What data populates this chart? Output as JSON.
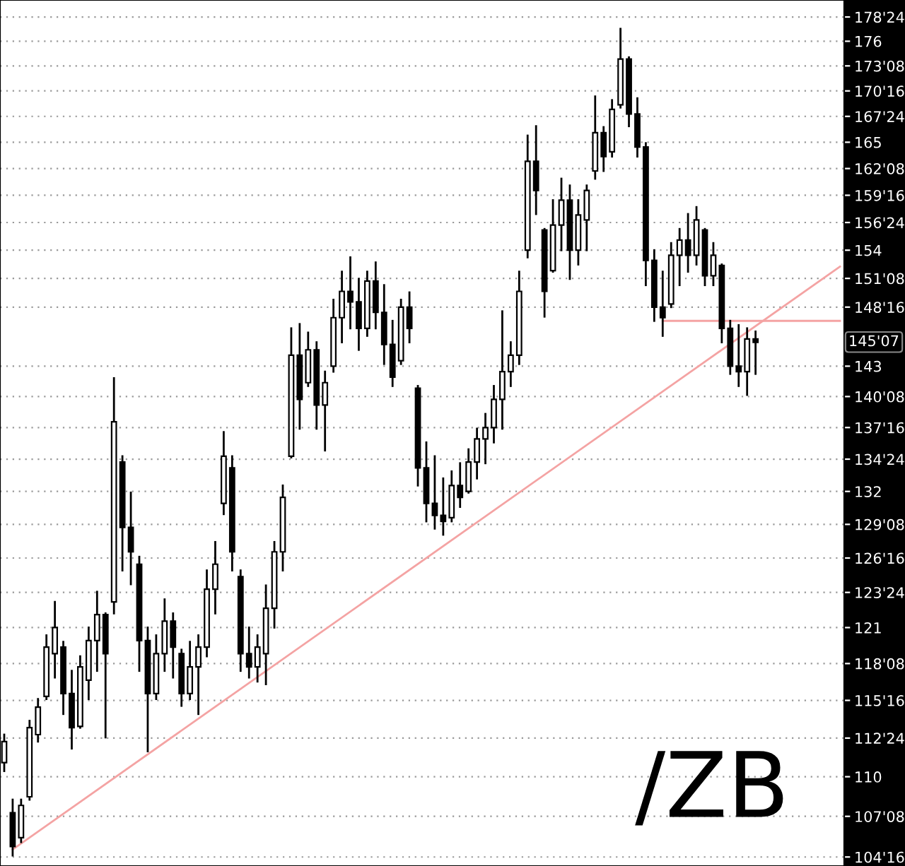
{
  "chart_data": {
    "type": "candlestick",
    "log": "y",
    "grid": "y",
    "tick_labels": "y",
    "categories": [
      null,
      null,
      null,
      null,
      null,
      null,
      null,
      null,
      null,
      null,
      null,
      null,
      null,
      null,
      null,
      null,
      null,
      null,
      null,
      null,
      null,
      null,
      null,
      null,
      null,
      null,
      null,
      null,
      null,
      null,
      null,
      null,
      null,
      null,
      null,
      null,
      null,
      null,
      null,
      null,
      null,
      null,
      null,
      null,
      null,
      null,
      null,
      null,
      null,
      null,
      null,
      null,
      null,
      null,
      null,
      null,
      null,
      null,
      null,
      null,
      null,
      null,
      null,
      null,
      null,
      null,
      null,
      null,
      null,
      null,
      null,
      null,
      null,
      null,
      null,
      null,
      null,
      null,
      null,
      null,
      null,
      null,
      null,
      null,
      null,
      null,
      null,
      null,
      null,
      null,
      null,
      null,
      null,
      null,
      null,
      null,
      null,
      null,
      null,
      null
    ],
    "color": "#000000",
    "ohlc": [
      [
        111,
        113.0,
        110.4,
        112.5
      ],
      [
        107.5,
        108.4,
        104.6,
        105.2
      ],
      [
        105.8,
        108.4,
        105.5,
        108
      ],
      [
        108.6,
        114.0,
        108.4,
        113.5
      ],
      [
        113,
        115.6,
        112.5,
        115
      ],
      [
        115.8,
        120.4,
        115.6,
        119.5
      ],
      [
        119,
        123.0,
        117.2,
        121
      ],
      [
        119.5,
        119.9,
        114.5,
        116
      ],
      [
        116,
        117.7,
        112.0,
        113.5
      ],
      [
        113.6,
        118.8,
        113.5,
        118
      ],
      [
        117,
        121.0,
        115.6,
        120
      ],
      [
        120,
        123.8,
        117.7,
        122
      ],
      [
        122,
        122.1,
        112.8,
        119
      ],
      [
        123,
        141.9,
        122.1,
        138
      ],
      [
        134.5,
        135.0,
        125.5,
        129
      ],
      [
        129,
        131.9,
        124.4,
        127
      ],
      [
        126,
        126.6,
        117.7,
        120
      ],
      [
        120,
        121.0,
        111.8,
        116
      ],
      [
        116,
        120.4,
        115.6,
        119
      ],
      [
        119,
        123.2,
        117.7,
        121.5
      ],
      [
        121.5,
        122.1,
        117.2,
        119.5
      ],
      [
        119,
        119.3,
        115.1,
        116
      ],
      [
        116,
        119.9,
        115.6,
        118
      ],
      [
        118,
        120.4,
        114.5,
        119.5
      ],
      [
        119.5,
        125.5,
        118.8,
        124
      ],
      [
        124,
        127.8,
        122.1,
        126
      ],
      [
        131,
        137.1,
        130.1,
        135
      ],
      [
        134,
        135.0,
        125.5,
        127
      ],
      [
        125,
        125.5,
        117.7,
        119
      ],
      [
        119,
        121.0,
        117.2,
        118
      ],
      [
        118,
        120.4,
        116.9,
        119.5
      ],
      [
        119,
        124.3,
        116.7,
        122.5
      ],
      [
        122.5,
        127.8,
        121.0,
        127
      ],
      [
        127,
        132.5,
        125.5,
        131.5
      ],
      [
        135,
        146.5,
        134.9,
        144
      ],
      [
        144,
        146.9,
        137.4,
        140
      ],
      [
        141.5,
        146.1,
        141.2,
        144.5
      ],
      [
        144.5,
        145.2,
        137.4,
        139.5
      ],
      [
        139.5,
        142.5,
        135.5,
        141.5
      ],
      [
        143,
        149.2,
        142.5,
        147.5
      ],
      [
        147.5,
        151.9,
        145.2,
        150
      ],
      [
        150,
        153.3,
        146.5,
        149
      ],
      [
        149,
        151.2,
        144.5,
        146.5
      ],
      [
        146.5,
        151.9,
        145.8,
        151
      ],
      [
        151,
        152.8,
        146.5,
        148
      ],
      [
        148,
        150.6,
        143.2,
        145
      ],
      [
        145,
        147.2,
        141.2,
        142
      ],
      [
        143.5,
        149.2,
        143.2,
        148.5
      ],
      [
        148.5,
        149.9,
        145.2,
        146.5
      ],
      [
        141,
        141.2,
        132.5,
        134
      ],
      [
        134,
        136.2,
        129.5,
        131
      ],
      [
        131,
        135.0,
        128.9,
        130
      ],
      [
        130,
        133.1,
        128.4,
        129.5
      ],
      [
        129.8,
        133.7,
        129.5,
        132.5
      ],
      [
        132.5,
        134.4,
        130.7,
        131.5
      ],
      [
        132,
        135.6,
        131.9,
        134.5
      ],
      [
        134.5,
        137.4,
        133.1,
        136.5
      ],
      [
        136.5,
        138.7,
        134.4,
        137.5
      ],
      [
        137.5,
        141.2,
        136.2,
        140
      ],
      [
        140,
        148.1,
        137.4,
        142.5
      ],
      [
        142.5,
        145.2,
        141.2,
        144
      ],
      [
        144,
        151.9,
        143.2,
        150
      ],
      [
        154,
        165.7,
        153.3,
        163
      ],
      [
        163,
        166.7,
        157.6,
        160
      ],
      [
        156,
        156.1,
        147.6,
        150
      ],
      [
        152,
        159.0,
        151.9,
        156.5
      ],
      [
        156.5,
        161.2,
        154.0,
        159
      ],
      [
        159,
        160.5,
        151.2,
        154
      ],
      [
        154,
        159.0,
        152.6,
        157.5
      ],
      [
        157,
        160.5,
        154.0,
        160
      ],
      [
        162,
        169.9,
        161.2,
        166
      ],
      [
        166,
        166.6,
        162.0,
        163.5
      ],
      [
        164,
        169.5,
        163.5,
        168.5
      ],
      [
        169,
        177.4,
        168.7,
        174
      ],
      [
        174,
        174.2,
        166.7,
        168
      ],
      [
        168,
        169.7,
        163.5,
        164.5
      ],
      [
        164.5,
        164.9,
        150.6,
        153
      ],
      [
        153,
        154.0,
        147.2,
        148.5
      ],
      [
        148.5,
        151.9,
        145.8,
        147.5
      ],
      [
        148.8,
        154.7,
        148.5,
        153.5
      ],
      [
        153.5,
        156.1,
        150.6,
        155
      ],
      [
        155,
        157.6,
        151.9,
        153.5
      ],
      [
        153.5,
        158.3,
        152.6,
        157
      ],
      [
        156,
        156.1,
        150.6,
        151.5
      ],
      [
        151.5,
        154.7,
        150.6,
        153.5
      ],
      [
        152.5,
        152.6,
        145.2,
        146.5
      ],
      [
        146.5,
        147.2,
        142.3,
        143
      ],
      [
        143,
        146.8,
        141.2,
        142.5
      ],
      [
        142.5,
        146.5,
        140.4,
        145.5
      ],
      [
        145.5,
        146.2,
        142.3,
        145.2
      ],
      null,
      null,
      null,
      null,
      null,
      null,
      null,
      null,
      null,
      null
    ],
    "series": [
      {
        "type": "line",
        "color": "#f4a3a3",
        "values": [
          null,
          105.0,
          null,
          null,
          null,
          null,
          null,
          null,
          null,
          null,
          null,
          null,
          null,
          null,
          null,
          null,
          null,
          null,
          null,
          null,
          null,
          null,
          null,
          null,
          null,
          null,
          null,
          null,
          null,
          null,
          null,
          null,
          null,
          null,
          null,
          null,
          null,
          null,
          null,
          null,
          null,
          null,
          null,
          null,
          null,
          null,
          null,
          null,
          null,
          null,
          null,
          null,
          null,
          null,
          null,
          null,
          null,
          null,
          null,
          null,
          null,
          null,
          null,
          null,
          null,
          null,
          null,
          null,
          null,
          null,
          null,
          null,
          null,
          null,
          null,
          null,
          null,
          null,
          null,
          null,
          null,
          null,
          null,
          null,
          null,
          null,
          null,
          null,
          null,
          null,
          null,
          null,
          null,
          null,
          null,
          null,
          null,
          null,
          null,
          152.4
        ]
      },
      {
        "type": "line",
        "color": "#f4a3a3",
        "values": [
          null,
          null,
          null,
          null,
          null,
          null,
          null,
          null,
          null,
          null,
          null,
          null,
          null,
          null,
          null,
          null,
          null,
          null,
          null,
          null,
          null,
          null,
          null,
          null,
          null,
          null,
          null,
          null,
          null,
          null,
          null,
          null,
          null,
          null,
          null,
          null,
          null,
          null,
          null,
          null,
          null,
          null,
          null,
          null,
          null,
          null,
          null,
          null,
          null,
          null,
          null,
          null,
          null,
          null,
          null,
          null,
          null,
          null,
          null,
          null,
          null,
          null,
          null,
          null,
          null,
          null,
          null,
          null,
          null,
          null,
          null,
          null,
          null,
          null,
          null,
          null,
          null,
          null,
          147.2,
          null,
          null,
          null,
          null,
          null,
          null,
          null,
          null,
          null,
          null,
          null,
          null,
          null,
          null,
          null,
          null,
          null,
          null,
          null,
          null,
          147.2
        ]
      }
    ],
    "ylim": [
      103.9,
      180.7
    ],
    "yticks": [
      {
        "value": 104.5,
        "label": "104'16"
      },
      {
        "value": 107.25,
        "label": "107'08"
      },
      110,
      {
        "value": 112.75,
        "label": "112'24"
      },
      {
        "value": 115.5,
        "label": "115'16"
      },
      {
        "value": 118.25,
        "label": "118'08"
      },
      121,
      {
        "value": 123.75,
        "label": "123'24"
      },
      {
        "value": 126.5,
        "label": "126'16"
      },
      {
        "value": 129.25,
        "label": "129'08"
      },
      132,
      {
        "value": 134.75,
        "label": "134'24"
      },
      {
        "value": 137.5,
        "label": "137'16"
      },
      {
        "value": 140.25,
        "label": "140'08"
      },
      143,
      {
        "value": 148.5,
        "label": "148'16"
      },
      {
        "value": 151.25,
        "label": "151'08"
      },
      154,
      {
        "value": 156.75,
        "label": "156'24"
      },
      {
        "value": 159.5,
        "label": "159'16"
      },
      {
        "value": 162.25,
        "label": "162'08"
      },
      165,
      {
        "value": 167.75,
        "label": "167'24"
      },
      {
        "value": 170.5,
        "label": "170'16"
      },
      {
        "value": 173.25,
        "label": "173'08"
      },
      176,
      {
        "value": 178.75,
        "label": "178'24"
      }
    ],
    "annotations": [
      {
        "text": "145'07",
        "y": 145.22
      },
      "/ZB"
    ]
  }
}
